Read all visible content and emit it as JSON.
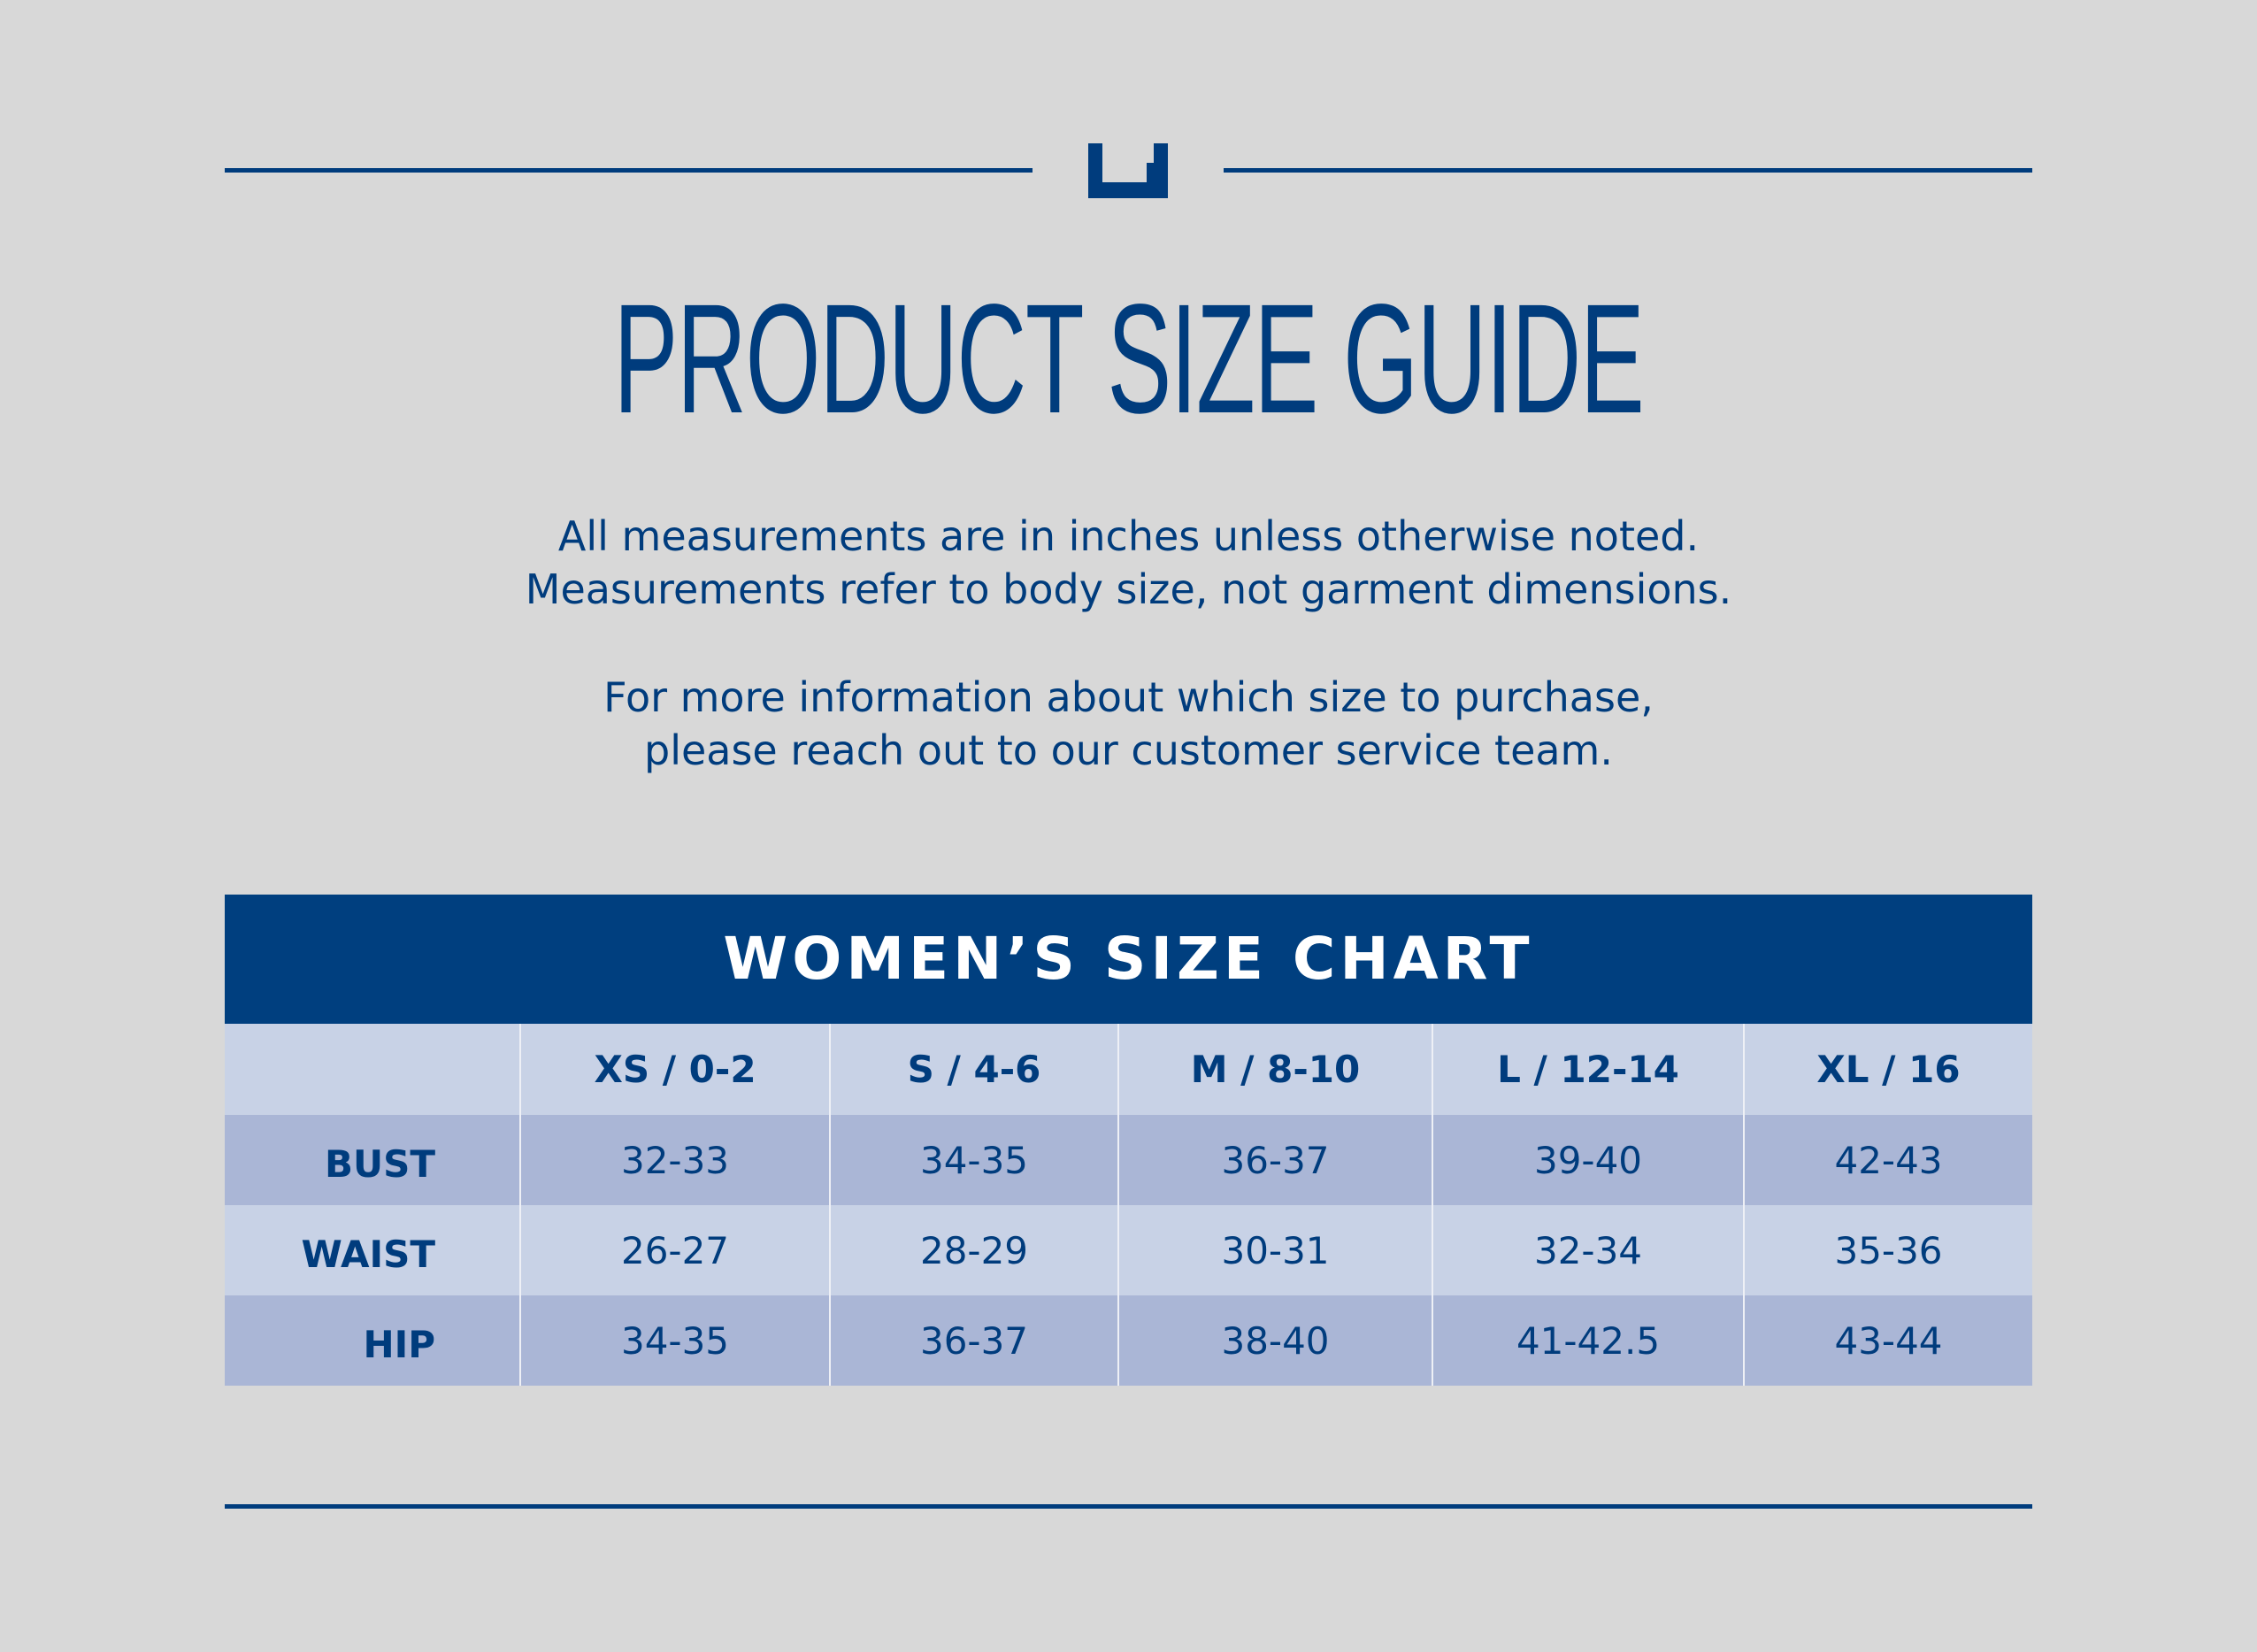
{
  "header": {
    "logo_icon": "u-logo-icon",
    "title": "PRODUCT SIZE GUIDE"
  },
  "intro": {
    "line1": "All measurements are in inches unless otherwise noted.",
    "line2": "Measurements refer to body size, not garment dimensions.",
    "line3": "For more information about which size to purchase,",
    "line4": "please reach out to our customer service team."
  },
  "size_chart": {
    "title": "WOMEN’S SIZE CHART",
    "columns": [
      "",
      "XS / 0-2",
      "S / 4-6",
      "M / 8-10",
      "L / 12-14",
      "XL / 16"
    ],
    "rows": [
      {
        "label": "BUST",
        "values": [
          "32-33",
          "34-35",
          "36-37",
          "39-40",
          "42-43"
        ]
      },
      {
        "label": "WAIST",
        "values": [
          "26-27",
          "28-29",
          "30-31",
          "32-34",
          "35-36"
        ]
      },
      {
        "label": "HIP",
        "values": [
          "34-35",
          "36-37",
          "38-40",
          "41-42.5",
          "43-44"
        ]
      }
    ]
  },
  "colors": {
    "brand_blue": "#003c7d",
    "background": "#d8d8d8",
    "row_light": "#c8d2e6",
    "row_dark": "#aab6d6"
  }
}
